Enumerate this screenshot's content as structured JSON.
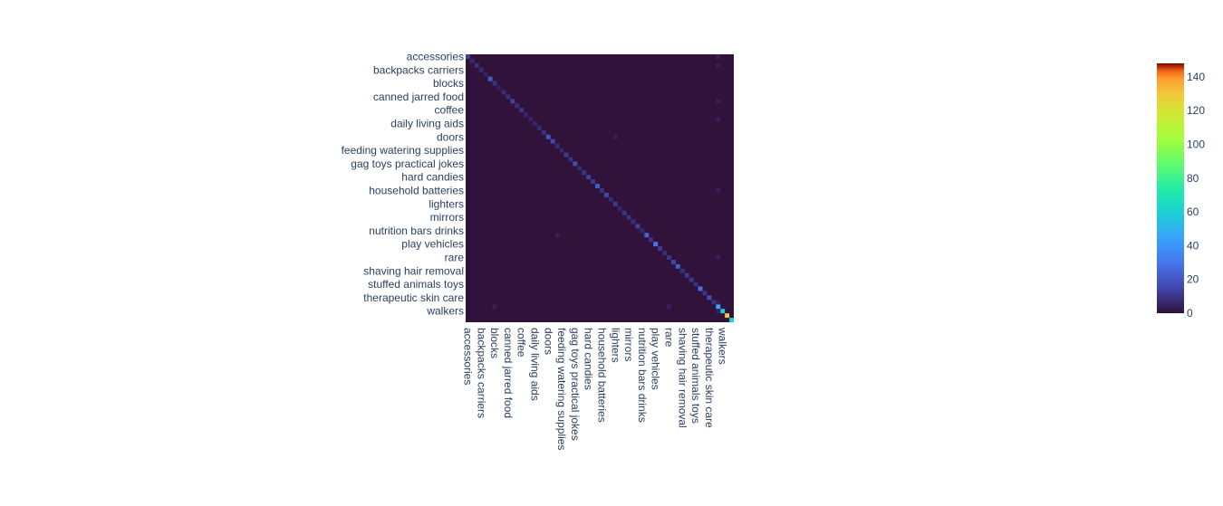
{
  "chart_data": {
    "type": "heatmap",
    "colorscale": "turbo",
    "zmin": 0,
    "zmax": 148,
    "n_categories": 60,
    "labels": [
      "accessories",
      "backpacks carriers",
      "blocks",
      "canned jarred food",
      "coffee",
      "daily living aids",
      "doors",
      "feeding watering supplies",
      "gag toys practical jokes",
      "hard candies",
      "household batteries",
      "lighters",
      "mirrors",
      "nutrition bars drinks",
      "play vehicles",
      "rare",
      "shaving hair removal",
      "stuffed animals toys",
      "therapeutic skin care",
      "walkers"
    ],
    "diagonal_values": [
      14,
      6,
      9,
      7,
      5,
      22,
      9,
      4,
      8,
      9,
      14,
      8,
      10,
      6,
      5,
      6,
      7,
      9,
      20,
      15,
      8,
      6,
      12,
      9,
      18,
      7,
      10,
      13,
      11,
      22,
      9,
      16,
      7,
      12,
      6,
      10,
      9,
      8,
      14,
      6,
      25,
      9,
      30,
      12,
      8,
      10,
      15,
      22,
      9,
      12,
      11,
      9,
      28,
      10,
      18,
      9,
      45,
      60,
      130,
      60
    ],
    "off_diagonal_notes": "faint hot spots mostly in column ~56 and a few scattered cells",
    "colorbar_ticks": [
      0,
      20,
      40,
      60,
      80,
      100,
      120,
      140
    ]
  }
}
